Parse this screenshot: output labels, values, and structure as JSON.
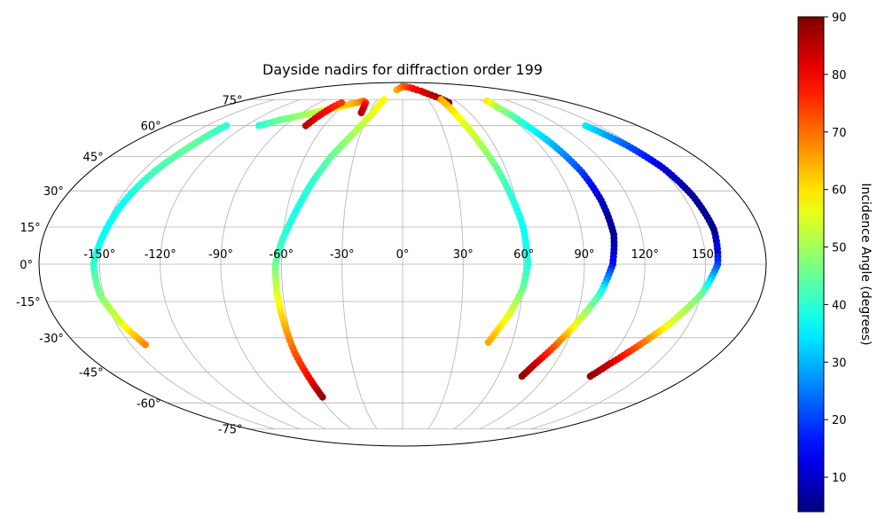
{
  "chart_data": {
    "type": "scatter",
    "projection": "mollweide",
    "title": "Dayside nadirs for diffraction order 199",
    "colorbar": {
      "label": "Incidence Angle (degrees)",
      "colormap": "jet",
      "range": [
        4,
        90
      ],
      "ticks": [
        "10",
        "20",
        "30",
        "40",
        "50",
        "60",
        "70",
        "80",
        "90"
      ]
    },
    "longitude_tick_labels": [
      "-150°",
      "-120°",
      "-90°",
      "-60°",
      "-30°",
      "0°",
      "30°",
      "60°",
      "90°",
      "120°",
      "150°"
    ],
    "latitude_tick_labels": [
      "75°",
      "60°",
      "45°",
      "30°",
      "15°",
      "0°",
      "-15°",
      "-30°",
      "-45°",
      "-60°",
      "-75°"
    ],
    "grid": true,
    "series": [
      {
        "points": [
          {
            "lon": -110,
            "lat": 60,
            "inc": 40
          },
          {
            "lon": -100,
            "lat": 63,
            "inc": 45
          },
          {
            "lon": -85,
            "lat": 66,
            "inc": 50
          },
          {
            "lon": -70,
            "lat": 69,
            "inc": 55
          },
          {
            "lon": -60,
            "lat": 71,
            "inc": 60
          },
          {
            "lon": -50,
            "lat": 73,
            "inc": 65
          },
          {
            "lon": -44,
            "lat": 74,
            "inc": 70
          },
          {
            "lon": -40,
            "lat": 73,
            "inc": 76
          },
          {
            "lon": -38,
            "lat": 70,
            "inc": 82
          },
          {
            "lon": -37,
            "lat": 67,
            "inc": 85
          }
        ]
      },
      {
        "points": [
          {
            "lon": -135,
            "lat": 60,
            "inc": 40
          },
          {
            "lon": -138,
            "lat": 50,
            "inc": 45
          },
          {
            "lon": -143,
            "lat": 38,
            "inc": 42
          },
          {
            "lon": -147,
            "lat": 25,
            "inc": 37
          },
          {
            "lon": -150,
            "lat": 12,
            "inc": 36
          },
          {
            "lon": -153,
            "lat": 0,
            "inc": 40
          },
          {
            "lon": -152,
            "lat": -12,
            "inc": 47
          },
          {
            "lon": -147,
            "lat": -24,
            "inc": 55
          },
          {
            "lon": -142,
            "lat": -33,
            "inc": 68
          }
        ]
      },
      {
        "points": [
          {
            "lon": -74,
            "lat": 60,
            "inc": 85
          },
          {
            "lon": -72,
            "lat": 65,
            "inc": 82
          },
          {
            "lon": -69,
            "lat": 70,
            "inc": 78
          },
          {
            "lon": -66,
            "lat": 73,
            "inc": 75
          }
        ]
      },
      {
        "points": [
          {
            "lon": -22,
            "lat": 75,
            "inc": 58
          },
          {
            "lon": -28,
            "lat": 65,
            "inc": 55
          },
          {
            "lon": -36,
            "lat": 55,
            "inc": 50
          },
          {
            "lon": -44,
            "lat": 45,
            "inc": 45
          },
          {
            "lon": -50,
            "lat": 34,
            "inc": 40
          },
          {
            "lon": -55,
            "lat": 22,
            "inc": 38
          },
          {
            "lon": -60,
            "lat": 10,
            "inc": 40
          },
          {
            "lon": -63,
            "lat": 0,
            "inc": 45
          },
          {
            "lon": -63,
            "lat": -12,
            "inc": 55
          },
          {
            "lon": -62,
            "lat": -24,
            "inc": 63
          },
          {
            "lon": -61,
            "lat": -37,
            "inc": 72
          },
          {
            "lon": -59,
            "lat": -49,
            "inc": 80
          },
          {
            "lon": -58,
            "lat": -57,
            "inc": 88
          }
        ]
      },
      {
        "points": [
          {
            "lon": -10,
            "lat": 82,
            "inc": 65
          },
          {
            "lon": 0,
            "lat": 85,
            "inc": 70
          },
          {
            "lon": 15,
            "lat": 84,
            "inc": 76
          },
          {
            "lon": 30,
            "lat": 81,
            "inc": 82
          },
          {
            "lon": 45,
            "lat": 76,
            "inc": 87
          },
          {
            "lon": 50,
            "lat": 73,
            "inc": 90
          }
        ]
      },
      {
        "points": [
          {
            "lon": 45,
            "lat": 75,
            "inc": 65
          },
          {
            "lon": 47,
            "lat": 65,
            "inc": 58
          },
          {
            "lon": 51,
            "lat": 52,
            "inc": 52
          },
          {
            "lon": 55,
            "lat": 40,
            "inc": 45
          },
          {
            "lon": 58,
            "lat": 28,
            "inc": 40
          },
          {
            "lon": 61,
            "lat": 15,
            "inc": 37
          },
          {
            "lon": 62,
            "lat": 0,
            "inc": 39
          },
          {
            "lon": 60,
            "lat": -10,
            "inc": 45
          },
          {
            "lon": 55,
            "lat": -20,
            "inc": 55
          },
          {
            "lon": 47,
            "lat": -32,
            "inc": 65
          }
        ]
      },
      {
        "points": [
          {
            "lon": 95,
            "lat": 74,
            "inc": 60
          },
          {
            "lon": 93,
            "lat": 70,
            "inc": 50
          },
          {
            "lon": 95,
            "lat": 60,
            "inc": 38
          },
          {
            "lon": 99,
            "lat": 50,
            "inc": 30
          },
          {
            "lon": 103,
            "lat": 38,
            "inc": 20
          },
          {
            "lon": 105,
            "lat": 26,
            "inc": 10
          },
          {
            "lon": 106,
            "lat": 12,
            "inc": 5
          },
          {
            "lon": 104,
            "lat": 0,
            "inc": 15
          },
          {
            "lon": 99,
            "lat": -12,
            "inc": 40
          },
          {
            "lon": 91,
            "lat": -24,
            "inc": 55
          },
          {
            "lon": 84,
            "lat": -34,
            "inc": 72
          },
          {
            "lon": 78,
            "lat": -42,
            "inc": 84
          },
          {
            "lon": 75,
            "lat": -47,
            "inc": 88
          }
        ]
      },
      {
        "points": [
          {
            "lon": 140,
            "lat": 60,
            "inc": 35
          },
          {
            "lon": 147,
            "lat": 50,
            "inc": 22
          },
          {
            "lon": 152,
            "lat": 40,
            "inc": 12
          },
          {
            "lon": 155,
            "lat": 28,
            "inc": 6
          },
          {
            "lon": 157,
            "lat": 14,
            "inc": 5
          },
          {
            "lon": 156,
            "lat": 0,
            "inc": 20
          },
          {
            "lon": 150,
            "lat": -12,
            "inc": 45
          },
          {
            "lon": 140,
            "lat": -24,
            "inc": 55
          },
          {
            "lon": 130,
            "lat": -34,
            "inc": 72
          },
          {
            "lon": 122,
            "lat": -42,
            "inc": 84
          },
          {
            "lon": 118,
            "lat": -47,
            "inc": 88
          }
        ]
      }
    ]
  }
}
